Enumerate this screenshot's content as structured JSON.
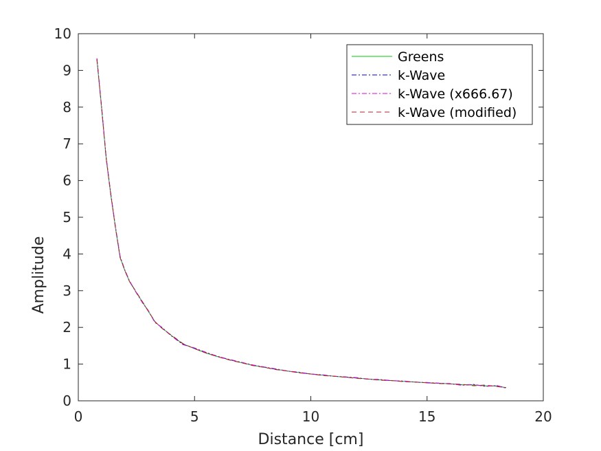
{
  "chart_data": {
    "type": "line",
    "xlabel": "Distance [cm]",
    "ylabel": "Amplitude",
    "xlim": [
      0,
      20
    ],
    "ylim": [
      0,
      10
    ],
    "xticks": [
      0,
      5,
      10,
      15,
      20
    ],
    "yticks": [
      0,
      1,
      2,
      3,
      4,
      5,
      6,
      7,
      8,
      9,
      10
    ],
    "grid": false,
    "legend_position": "top-right",
    "series": [
      {
        "name": "Greens",
        "color": "#00cc00",
        "style": "solid",
        "x": [
          0.8,
          1.0,
          1.2,
          1.4,
          1.6,
          1.8,
          2.0,
          2.2,
          2.5,
          2.8,
          3.0,
          3.3,
          3.6,
          4.0,
          4.5,
          5.0,
          5.5,
          6.0,
          6.5,
          7.0,
          7.5,
          8.0,
          8.5,
          9.0,
          9.5,
          10.0,
          10.5,
          11.0,
          11.5,
          12.0,
          12.5,
          13.0,
          13.5,
          14.0,
          14.5,
          15.0,
          15.5,
          16.0,
          16.5,
          17.0,
          17.5,
          18.0,
          18.4
        ],
        "y": [
          9.3,
          8.0,
          6.6,
          5.6,
          4.7,
          3.9,
          3.55,
          3.25,
          2.95,
          2.65,
          2.45,
          2.15,
          1.98,
          1.78,
          1.55,
          1.42,
          1.3,
          1.2,
          1.12,
          1.04,
          0.97,
          0.91,
          0.86,
          0.81,
          0.77,
          0.73,
          0.7,
          0.67,
          0.64,
          0.62,
          0.59,
          0.57,
          0.55,
          0.53,
          0.51,
          0.49,
          0.48,
          0.46,
          0.44,
          0.43,
          0.41,
          0.4,
          0.36
        ]
      },
      {
        "name": "k-Wave",
        "color": "#0000b0",
        "style": "dashdot",
        "x": [
          0.8,
          1.0,
          1.2,
          1.4,
          1.6,
          1.8,
          2.0,
          2.2,
          2.5,
          2.8,
          3.0,
          3.3,
          3.6,
          4.0,
          4.5,
          5.0,
          5.5,
          6.0,
          6.5,
          7.0,
          7.5,
          8.0,
          8.5,
          9.0,
          9.5,
          10.0,
          10.5,
          11.0,
          11.5,
          12.0,
          12.5,
          13.0,
          13.5,
          14.0,
          14.5,
          15.0,
          15.5,
          16.0,
          16.5,
          17.0,
          17.5,
          18.0,
          18.4
        ],
        "y": [
          9.32,
          8.02,
          6.62,
          5.62,
          4.72,
          3.92,
          3.56,
          3.26,
          2.94,
          2.64,
          2.46,
          2.14,
          1.99,
          1.77,
          1.54,
          1.43,
          1.31,
          1.21,
          1.12,
          1.05,
          0.97,
          0.92,
          0.86,
          0.81,
          0.77,
          0.73,
          0.7,
          0.67,
          0.65,
          0.62,
          0.59,
          0.57,
          0.55,
          0.53,
          0.51,
          0.49,
          0.48,
          0.46,
          0.43,
          0.44,
          0.4,
          0.41,
          0.35
        ]
      },
      {
        "name": "k-Wave (x666.67)",
        "color": "#e000e0",
        "style": "dashdot",
        "x": [
          0.8,
          1.0,
          1.2,
          1.4,
          1.6,
          1.8,
          2.0,
          2.2,
          2.5,
          2.8,
          3.0,
          3.3,
          3.6,
          4.0,
          4.5,
          5.0,
          5.5,
          6.0,
          6.5,
          7.0,
          7.5,
          8.0,
          8.5,
          9.0,
          9.5,
          10.0,
          10.5,
          11.0,
          11.5,
          12.0,
          12.5,
          13.0,
          13.5,
          14.0,
          14.5,
          15.0,
          15.5,
          16.0,
          16.5,
          17.0,
          17.5,
          18.0,
          18.4
        ],
        "y": [
          9.33,
          8.03,
          6.63,
          5.63,
          4.73,
          3.93,
          3.57,
          3.27,
          2.94,
          2.63,
          2.47,
          2.13,
          2.0,
          1.77,
          1.53,
          1.44,
          1.32,
          1.21,
          1.13,
          1.05,
          0.98,
          0.92,
          0.87,
          0.81,
          0.78,
          0.73,
          0.71,
          0.67,
          0.65,
          0.63,
          0.59,
          0.58,
          0.55,
          0.54,
          0.51,
          0.5,
          0.48,
          0.47,
          0.42,
          0.45,
          0.39,
          0.42,
          0.34
        ]
      },
      {
        "name": "k-Wave (modified)",
        "color": "#b22222",
        "style": "dashed",
        "x": [
          0.8,
          1.0,
          1.2,
          1.4,
          1.6,
          1.8,
          2.0,
          2.2,
          2.5,
          2.8,
          3.0,
          3.3,
          3.6,
          4.0,
          4.5,
          5.0,
          5.5,
          6.0,
          6.5,
          7.0,
          7.5,
          8.0,
          8.5,
          9.0,
          9.5,
          10.0,
          10.5,
          11.0,
          11.5,
          12.0,
          12.5,
          13.0,
          13.5,
          14.0,
          14.5,
          15.0,
          15.5,
          16.0,
          16.5,
          17.0,
          17.5,
          18.0,
          18.4
        ],
        "y": [
          9.3,
          8.0,
          6.6,
          5.6,
          4.7,
          3.9,
          3.55,
          3.25,
          2.96,
          2.66,
          2.45,
          2.16,
          1.97,
          1.79,
          1.56,
          1.42,
          1.3,
          1.2,
          1.11,
          1.04,
          0.96,
          0.91,
          0.85,
          0.81,
          0.76,
          0.73,
          0.69,
          0.67,
          0.64,
          0.61,
          0.59,
          0.56,
          0.55,
          0.52,
          0.51,
          0.49,
          0.47,
          0.46,
          0.45,
          0.41,
          0.43,
          0.39,
          0.36
        ]
      }
    ]
  }
}
